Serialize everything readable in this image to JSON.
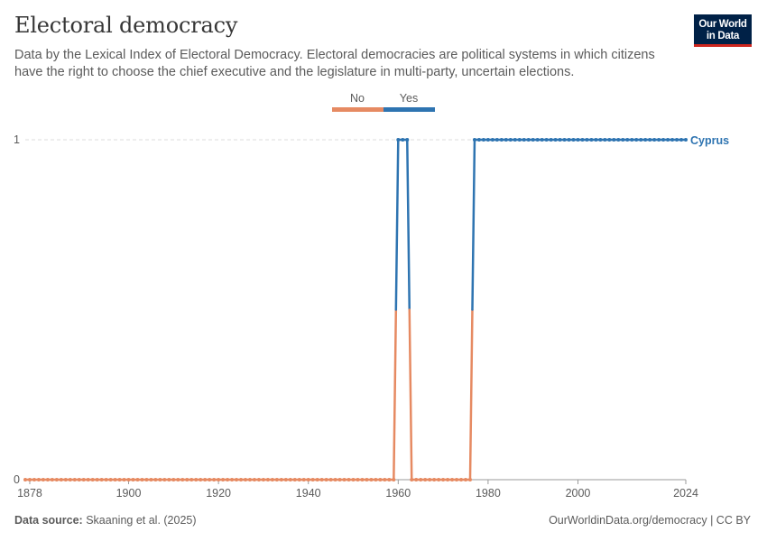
{
  "header": {
    "title": "Electoral democracy",
    "subtitle": "Data by the Lexical Index of Electoral Democracy. Electoral democracies are political systems in which citizens have the right to choose the chief executive and the legislature in multi-party, uncertain elections."
  },
  "logo": {
    "line1": "Our World",
    "line2": "in Data",
    "bg": "#002147",
    "accent": "#ce261e"
  },
  "footer": {
    "source_label": "Data source:",
    "source_value": "Skaaning et al. (2025)",
    "link": "OurWorldinData.org/democracy | CC BY"
  },
  "chart_data": {
    "type": "line",
    "title": "Electoral democracy",
    "xlabel": "",
    "ylabel": "",
    "xlim": [
      1877,
      2024
    ],
    "ylim": [
      0,
      1
    ],
    "x_ticks": [
      1878,
      1900,
      1920,
      1940,
      1960,
      1980,
      2000,
      2024
    ],
    "y_ticks": [
      0,
      1
    ],
    "legend": {
      "placement": "top-center",
      "entries": [
        {
          "label": "No",
          "color": "#e68a62"
        },
        {
          "label": "Yes",
          "color": "#2e74b1"
        }
      ]
    },
    "series": [
      {
        "name": "Cyprus",
        "label_color": "#2e74b1",
        "x_start": 1877,
        "x_end": 2024,
        "yes_years": [
          1960,
          1961,
          1962
        ],
        "yes_from": 1977,
        "values_note": "1 = Yes (electoral democracy), 0 = No"
      }
    ]
  }
}
